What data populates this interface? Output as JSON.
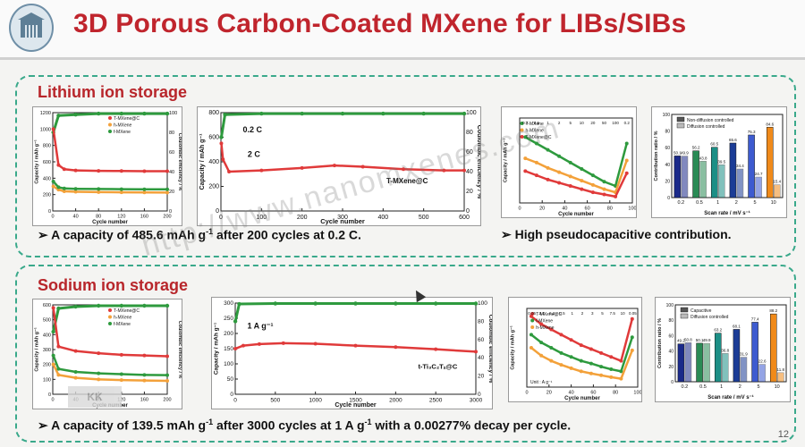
{
  "slide": {
    "title": "3D Porous Carbon-Coated MXene for LIBs/SIBs",
    "page_number": "12",
    "watermark": "http://www.nanomxenes.com",
    "stamp_text": "KK"
  },
  "lithium": {
    "heading": "Lithium ion storage",
    "note_left_pre": "➢ A capacity of 485.6 mAh g",
    "note_left_sup": "-1",
    "note_left_post": " after 200 cycles at 0.2 C.",
    "note_right": "➢ High pseudocapacitive contribution."
  },
  "sodium": {
    "heading": "Sodium ion storage",
    "note_pre": "➢ A capacity of 139.5 mAh g",
    "note_sup1": "-1",
    "note_mid": " after 3000 cycles at 1 A g",
    "note_sup2": "-1",
    "note_post": " with a 0.00277% decay per cycle."
  },
  "chart_data": [
    {
      "id": "li-cycle-200",
      "type": "scatter",
      "xlabel": "Cycle number",
      "ylabel": "Capacity / mAh g⁻¹",
      "y2label": "Coulombic efficiency / %",
      "xlim": [
        0,
        200
      ],
      "ylim": [
        0,
        1200
      ],
      "y2lim": [
        0,
        100
      ],
      "xticks": [
        "0",
        "40",
        "80",
        "120",
        "160",
        "200"
      ],
      "yticks": [
        "0",
        "200",
        "400",
        "600",
        "800",
        "1000",
        "1200"
      ],
      "y2ticks": [
        "0",
        "20",
        "40",
        "60",
        "80",
        "100"
      ],
      "legend": [
        "T-MXene@C",
        "h-MXene",
        "f-MXene"
      ],
      "colors": [
        "#e03a3a",
        "#f3a13a",
        "#2e9a3e"
      ],
      "series": [
        {
          "name": "T-MXene@C",
          "x": [
            1,
            10,
            20,
            40,
            80,
            120,
            160,
            200
          ],
          "y": [
            1000,
            560,
            510,
            495,
            490,
            488,
            486,
            486
          ]
        },
        {
          "name": "h-MXene",
          "x": [
            1,
            10,
            20,
            40,
            80,
            120,
            160,
            200
          ],
          "y": [
            300,
            260,
            240,
            235,
            230,
            228,
            226,
            225
          ]
        },
        {
          "name": "f-MXene",
          "x": [
            1,
            10,
            20,
            40,
            80,
            120,
            160,
            200
          ],
          "y": [
            360,
            290,
            275,
            270,
            268,
            266,
            265,
            265
          ]
        }
      ],
      "ce": {
        "x": [
          1,
          10,
          40,
          80,
          120,
          160,
          200
        ],
        "y": [
          80,
          97,
          98,
          99,
          99,
          99,
          99
        ]
      }
    },
    {
      "id": "li-cycle-600",
      "type": "scatter",
      "xlabel": "Cycle number",
      "ylabel": "Capacity / mAh g⁻¹",
      "y2label": "Coulombic efficiency / %",
      "xlim": [
        0,
        600
      ],
      "ylim": [
        0,
        800
      ],
      "y2lim": [
        0,
        100
      ],
      "xticks": [
        "0",
        "100",
        "200",
        "300",
        "400",
        "500",
        "600"
      ],
      "yticks": [
        "0",
        "200",
        "400",
        "600",
        "800"
      ],
      "y2ticks": [
        "0",
        "20",
        "40",
        "60",
        "80",
        "100"
      ],
      "annotations": [
        "0.2 C",
        "2 C",
        "T-MXene@C"
      ],
      "series": [
        {
          "name": "T-MXene@C",
          "x": [
            1,
            5,
            20,
            100,
            200,
            280,
            350,
            450,
            550,
            600
          ],
          "y": [
            550,
            420,
            320,
            330,
            350,
            370,
            360,
            340,
            330,
            330
          ]
        }
      ],
      "ce": {
        "x": [
          1,
          10,
          100,
          200,
          300,
          400,
          500,
          600
        ],
        "y": [
          75,
          98,
          99,
          99,
          99,
          99,
          99,
          99
        ]
      }
    },
    {
      "id": "li-rate",
      "type": "scatter",
      "xlabel": "Cycle number",
      "ylabel": "Capacity / mAh g⁻¹",
      "xlim": [
        0,
        100
      ],
      "ylim": [
        0,
        800
      ],
      "xticks": [
        "0",
        "20",
        "40",
        "60",
        "80",
        "100"
      ],
      "rate_labels": [
        "0.2",
        "0.5",
        "1",
        "2",
        "5",
        "10",
        "20",
        "50",
        "100",
        "0.2"
      ],
      "legend": [
        "T-MXene",
        "h-MXene",
        "T-MXene@C"
      ],
      "colors": [
        "#2e9a3e",
        "#f3a13a",
        "#e03a3a"
      ],
      "series": [
        {
          "name": "T-MXene@C",
          "x": [
            5,
            15,
            25,
            35,
            45,
            55,
            65,
            75,
            85,
            95
          ],
          "y": [
            620,
            560,
            500,
            440,
            380,
            320,
            260,
            200,
            160,
            560
          ]
        },
        {
          "name": "T-MXene",
          "x": [
            5,
            15,
            25,
            35,
            45,
            55,
            65,
            75,
            85,
            95
          ],
          "y": [
            420,
            380,
            330,
            290,
            250,
            210,
            170,
            130,
            100,
            400
          ]
        },
        {
          "name": "h-MXene",
          "x": [
            5,
            15,
            25,
            35,
            45,
            55,
            65,
            75,
            85,
            95
          ],
          "y": [
            300,
            260,
            220,
            190,
            160,
            130,
            100,
            80,
            60,
            280
          ]
        }
      ]
    },
    {
      "id": "li-contribution",
      "type": "bar",
      "xlabel": "Scan rate / mV s⁻¹",
      "ylabel": "Contribution ratio / %",
      "categories": [
        "0.2",
        "0.5",
        "1",
        "2",
        "5",
        "10"
      ],
      "ylim": [
        0,
        100
      ],
      "legend": [
        "Non-diffusion controlled",
        "Diffusion controlled"
      ],
      "series": [
        {
          "name": "Non-diffusion controlled",
          "values": [
            50.1,
            56.2,
            60.5,
            65.6,
            75.3,
            84.6
          ]
        },
        {
          "name": "Diffusion controlled",
          "values": [
            49.9,
            43.8,
            39.5,
            34.4,
            24.7,
            15.4
          ]
        }
      ],
      "value_labels": [
        "50.1",
        "49.9",
        "56.2",
        "43.8",
        "60.5",
        "39.5",
        "65.6",
        "34.4",
        "75.3",
        "24.7",
        "84.6",
        "15.4"
      ]
    },
    {
      "id": "na-cycle-200",
      "type": "scatter",
      "xlabel": "Cycle number",
      "ylabel": "Capacity / mAh g⁻¹",
      "y2label": "Coulombic efficiency / %",
      "xlim": [
        0,
        200
      ],
      "ylim": [
        0,
        600
      ],
      "y2lim": [
        0,
        100
      ],
      "xticks": [
        "0",
        "40",
        "80",
        "120",
        "160",
        "200"
      ],
      "yticks": [
        "0",
        "100",
        "200",
        "300",
        "400",
        "500",
        "600"
      ],
      "legend": [
        "T-MXene@C",
        "h-MXene",
        "f-MXene"
      ],
      "colors": [
        "#e03a3a",
        "#f3a13a",
        "#2e9a3e"
      ],
      "series": [
        {
          "name": "T-MXene@C",
          "x": [
            1,
            10,
            40,
            80,
            120,
            160,
            200
          ],
          "y": [
            580,
            320,
            290,
            275,
            265,
            260,
            255
          ]
        },
        {
          "name": "h-MXene",
          "x": [
            1,
            10,
            40,
            80,
            120,
            160,
            200
          ],
          "y": [
            200,
            130,
            110,
            100,
            95,
            92,
            90
          ]
        },
        {
          "name": "f-MXene",
          "x": [
            1,
            10,
            40,
            80,
            120,
            160,
            200
          ],
          "y": [
            260,
            170,
            150,
            140,
            135,
            130,
            128
          ]
        }
      ],
      "ce": {
        "x": [
          1,
          10,
          40,
          80,
          120,
          160,
          200
        ],
        "y": [
          70,
          96,
          98,
          99,
          99,
          99,
          99
        ]
      }
    },
    {
      "id": "na-cycle-3000",
      "type": "scatter",
      "xlabel": "Cycle number",
      "ylabel": "Capacity / mAh g⁻¹",
      "y2label": "Coulombic efficiency / %",
      "xlim": [
        0,
        3000
      ],
      "ylim": [
        0,
        300
      ],
      "y2lim": [
        0,
        100
      ],
      "xticks": [
        "0",
        "500",
        "1000",
        "1500",
        "2000",
        "2500",
        "3000"
      ],
      "yticks": [
        "0",
        "50",
        "100",
        "150",
        "200",
        "250",
        "300"
      ],
      "y2ticks": [
        "0",
        "20",
        "40",
        "60",
        "80",
        "100"
      ],
      "annotations": [
        "1 A g⁻¹",
        "t-Ti₃C₂Tₓ@C"
      ],
      "series": [
        {
          "name": "t-Ti3C2Tx@C",
          "x": [
            1,
            100,
            300,
            600,
            1000,
            1500,
            2000,
            2500,
            3000
          ],
          "y": [
            150,
            160,
            165,
            168,
            166,
            160,
            155,
            148,
            140
          ]
        }
      ],
      "ce": {
        "x": [
          1,
          50,
          500,
          1000,
          1500,
          2000,
          2500,
          3000
        ],
        "y": [
          80,
          99,
          99.5,
          99.5,
          99.5,
          99.5,
          99.5,
          99.5
        ]
      }
    },
    {
      "id": "na-rate",
      "type": "scatter",
      "xlabel": "Cycle number",
      "ylabel": "Capacity / mAh g⁻¹",
      "xlim": [
        0,
        100
      ],
      "ylim": [
        0,
        300
      ],
      "xticks": [
        "0",
        "20",
        "40",
        "60",
        "80",
        "100"
      ],
      "rate_labels": [
        "0.05",
        "0.1",
        "0.2",
        "0.5",
        "1",
        "2",
        "3",
        "5",
        "7.5",
        "10",
        "0.05"
      ],
      "unit_label": "Unit : A g⁻¹",
      "legend": [
        "T-MXene@C",
        "f-MXene",
        "h-MXene"
      ],
      "colors": [
        "#e03a3a",
        "#2e9a3e",
        "#f3a13a"
      ],
      "series": [
        {
          "name": "T-MXene@C",
          "x": [
            4,
            13,
            22,
            31,
            40,
            49,
            58,
            67,
            76,
            85,
            95
          ],
          "y": [
            270,
            240,
            220,
            200,
            180,
            160,
            145,
            130,
            115,
            100,
            260
          ]
        },
        {
          "name": "f-MXene",
          "x": [
            4,
            13,
            22,
            31,
            40,
            49,
            58,
            67,
            76,
            85,
            95
          ],
          "y": [
            200,
            170,
            150,
            130,
            115,
            100,
            90,
            78,
            68,
            60,
            190
          ]
        },
        {
          "name": "h-MXene",
          "x": [
            4,
            13,
            22,
            31,
            40,
            49,
            58,
            67,
            76,
            85,
            95
          ],
          "y": [
            150,
            120,
            100,
            85,
            72,
            60,
            52,
            45,
            38,
            32,
            140
          ]
        }
      ]
    },
    {
      "id": "na-contribution",
      "type": "bar",
      "xlabel": "Scan rate / mV s⁻¹",
      "ylabel": "Contribution ratio / %",
      "categories": [
        "0.2",
        "0.5",
        "1",
        "2",
        "5",
        "10"
      ],
      "ylim": [
        0,
        100
      ],
      "legend": [
        "Capacitive",
        "Diffusion controlled"
      ],
      "series": [
        {
          "name": "Capacitive",
          "values": [
            49.2,
            50.1,
            63.2,
            68.1,
            77.4,
            88.2
          ]
        },
        {
          "name": "Diffusion controlled",
          "values": [
            50.8,
            49.9,
            36.8,
            31.9,
            22.6,
            11.8
          ]
        }
      ],
      "value_labels": [
        "49.2",
        "50.8",
        "50.1",
        "49.9",
        "63.2",
        "36.8",
        "68.1",
        "31.9",
        "77.4",
        "22.6",
        "88.2",
        "11.8"
      ]
    }
  ]
}
